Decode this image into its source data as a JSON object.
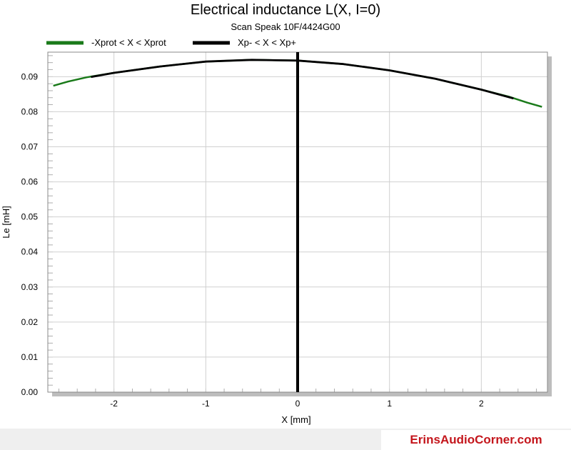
{
  "chart_data": {
    "type": "line",
    "title": "Electrical inductance L(X, I=0)",
    "subtitle": "Scan Speak 10F/4424G00",
    "xlabel": "X [mm]",
    "ylabel": "Le [mH]",
    "xlim": [
      -2.72,
      2.72
    ],
    "ylim": [
      0.0,
      0.097
    ],
    "x_ticks": [
      -2,
      -1,
      0,
      1,
      2
    ],
    "x_tick_labels": [
      "-2",
      "-1",
      "0",
      "1",
      "2"
    ],
    "y_ticks": [
      0.0,
      0.01,
      0.02,
      0.03,
      0.04,
      0.05,
      0.06,
      0.07,
      0.08,
      0.09
    ],
    "y_tick_labels": [
      "0.00",
      "0.01",
      "0.02",
      "0.03",
      "0.04",
      "0.05",
      "0.06",
      "0.07",
      "0.08",
      "0.09"
    ],
    "grid": true,
    "legend_position": "top-left",
    "vertical_marker_x": 0,
    "series": [
      {
        "name": "-Xprot < X < Xprot",
        "color": "#1a7a1a",
        "x": [
          -2.66,
          -2.5,
          -2.3,
          -2.0,
          -1.5,
          -1.0,
          -0.5,
          0.0,
          0.5,
          1.0,
          1.5,
          2.0,
          2.3,
          2.5,
          2.66
        ],
        "values": [
          0.0874,
          0.0886,
          0.0898,
          0.0911,
          0.0929,
          0.0943,
          0.0948,
          0.0946,
          0.0936,
          0.0918,
          0.0894,
          0.0863,
          0.0843,
          0.0826,
          0.0814
        ]
      },
      {
        "name": "Xp- < X < Xp+",
        "color": "#000000",
        "x": [
          -2.25,
          -2.0,
          -1.5,
          -1.0,
          -0.5,
          0.0,
          0.5,
          1.0,
          1.5,
          2.0,
          2.35
        ],
        "values": [
          0.0899,
          0.0911,
          0.0929,
          0.0943,
          0.0948,
          0.0946,
          0.0936,
          0.0918,
          0.0894,
          0.0863,
          0.0838
        ]
      }
    ]
  },
  "footer": {
    "brand": "ErinsAudioCorner.com"
  }
}
